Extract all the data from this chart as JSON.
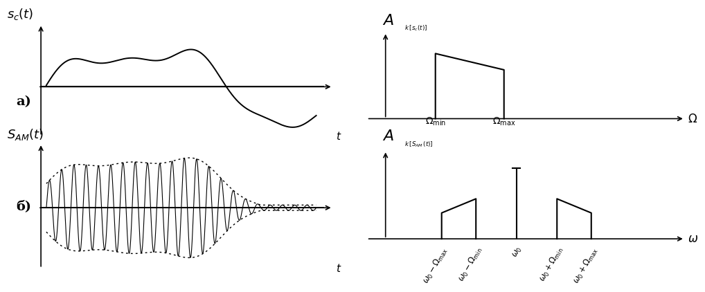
{
  "fig_width": 10.23,
  "fig_height": 3.87,
  "bg_color": "#ffffff",
  "line_color": "#000000",
  "panel_a_label": "а)",
  "panel_b_label": "б)",
  "sc_title": "$s_c(t)$",
  "sam_title": "$S_{AM}(t)$",
  "spectrum_a_title_A": "$A$",
  "spectrum_a_title_sub": "$k\\,[s_c(t)]$",
  "spectrum_b_title_A": "$A$",
  "spectrum_b_title_sub": "$k\\,[S_{AM}\\,(t)]$",
  "omega_min_label": "$\\Omega_{\\rm min}$",
  "omega_max_label": "$\\Omega_{\\rm max}$",
  "omega_axis_label": "$\\Omega$",
  "omega_axis_label2": "$\\omega$",
  "tick_labels_b": [
    "$\\omega_0 - \\Omega_{\\rm max}$",
    "$\\omega_0 - \\Omega_{\\rm min}$",
    "$\\omega_0$",
    "$\\omega_0 + \\Omega_{\\rm min}$",
    "$\\omega_0 + \\Omega_{\\rm max}$"
  ],
  "t_label": "$t$"
}
